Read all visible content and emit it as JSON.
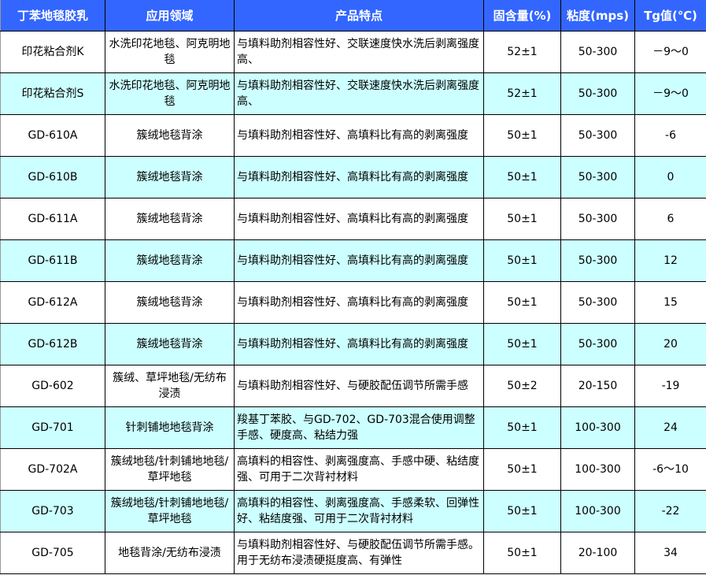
{
  "colors": {
    "header_bg": "#3366ff",
    "alt_row_bg": "#ccffff"
  },
  "headers": [
    "丁苯地毯胶乳",
    "应用领域",
    "产品特点",
    "固含量(%)",
    "粘度(mps)",
    "Tg值(℃)"
  ],
  "rows": [
    [
      "印花粘合剂K",
      "水洗印花地毯、阿克明地毯",
      "与填料助剂相容性好、交联速度快水洗后剥离强度高、",
      "52±1",
      "50-300",
      "－9～0"
    ],
    [
      "印花粘合剂S",
      "水洗印花地毯、阿克明地毯",
      "与填料助剂相容性好、交联速度快水洗后剥离强度高、",
      "52±1",
      "50-300",
      "－9～0"
    ],
    [
      "GD-610A",
      "簇绒地毯背涂",
      "与填料助剂相容性好、高填料比有高的剥离强度",
      "50±1",
      "50-300",
      "-6"
    ],
    [
      "GD-610B",
      "簇绒地毯背涂",
      "与填料助剂相容性好、高填料比有高的剥离强度",
      "50±1",
      "50-300",
      "0"
    ],
    [
      "GD-611A",
      "簇绒地毯背涂",
      "与填料助剂相容性好、高填料比有高的剥离强度",
      "50±1",
      "50-300",
      "6"
    ],
    [
      "GD-611B",
      "簇绒地毯背涂",
      "与填料助剂相容性好、高填料比有高的剥离强度",
      "50±1",
      "50-300",
      "12"
    ],
    [
      "GD-612A",
      "簇绒地毯背涂",
      "与填料助剂相容性好、高填料比有高的剥离强度",
      "50±1",
      "50-300",
      "15"
    ],
    [
      "GD-612B",
      "簇绒地毯背涂",
      "与填料助剂相容性好、高填料比有高的剥离强度",
      "50±1",
      "50-300",
      "20"
    ],
    [
      "GD-602",
      "簇绒、草坪地毯/无纺布浸渍",
      "与填料助剂相容性好、与硬胶配伍调节所需手感",
      "50±2",
      "20-150",
      "-19"
    ],
    [
      "GD-701",
      "针刺铺地地毯背涂",
      "羧基丁苯胶、与GD-702、GD-703混合使用调整手感、硬度高、粘结力强",
      "50±1",
      "100-300",
      "24"
    ],
    [
      "GD-702A",
      "簇绒地毯/针刺铺地地毯/草坪地毯",
      "高填料的相容性、剥离强度高、手感中硬、粘结度强、可用于二次背衬材料",
      "50±1",
      "100-300",
      "-6～10"
    ],
    [
      "GD-703",
      "簇绒地毯/针刺铺地地毯/草坪地毯",
      "高填料的相容性、剥离强度高、手感柔软、回弹性好、粘结度强、可用于二次背衬材料",
      "50±1",
      "100-300",
      "-22"
    ],
    [
      "GD-705",
      "地毯背涂/无纺布浸渍",
      "与填料助剂相容性好、与硬胶配伍调节所需手感。用于无纺布浸渍硬挺度高、有弹性",
      "50±1",
      "20-100",
      "34"
    ]
  ]
}
